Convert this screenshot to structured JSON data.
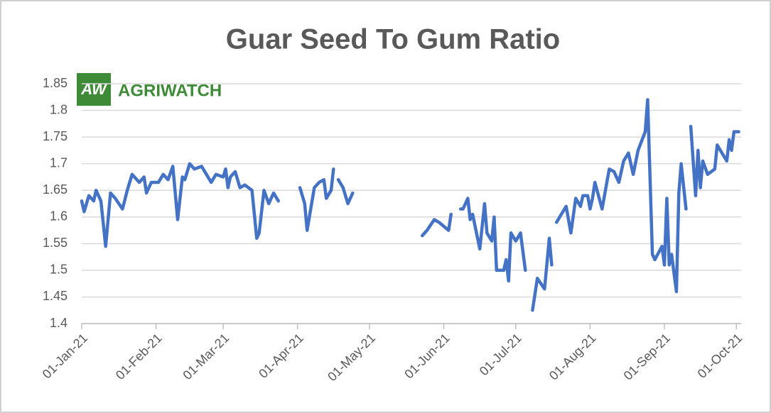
{
  "chart_data": {
    "type": "line",
    "title": "Guar Seed To Gum Ratio",
    "logo": {
      "badge": "AW",
      "text": "AGRIWATCH"
    },
    "x": [
      "2021-01-01",
      "2021-01-02",
      "2021-01-04",
      "2021-01-06",
      "2021-01-07",
      "2021-01-09",
      "2021-01-11",
      "2021-01-13",
      "2021-01-15",
      "2021-01-18",
      "2021-01-20",
      "2021-01-22",
      "2021-01-25",
      "2021-01-27",
      "2021-01-28",
      "2021-01-30",
      "2021-02-02",
      "2021-02-04",
      "2021-02-06",
      "2021-02-08",
      "2021-02-10",
      "2021-02-12",
      "2021-02-13",
      "2021-02-15",
      "2021-02-17",
      "2021-02-20",
      "2021-02-22",
      "2021-02-24",
      "2021-02-26",
      "2021-03-01",
      "2021-03-02",
      "2021-03-03",
      "2021-03-04",
      "2021-03-06",
      "2021-03-08",
      "2021-03-10",
      "2021-03-13",
      "2021-03-15",
      "2021-03-16",
      "2021-03-18",
      "2021-03-20",
      "2021-03-22",
      "2021-03-24",
      "2021-03-28",
      "2021-04-02",
      "2021-04-04",
      "2021-04-05",
      "2021-04-08",
      "2021-04-10",
      "2021-04-12",
      "2021-04-13",
      "2021-04-15",
      "2021-04-16",
      "2021-04-17",
      "2021-04-18",
      "2021-04-20",
      "2021-04-22",
      "2021-04-24",
      "2021-05-08",
      "2021-05-23",
      "2021-05-25",
      "2021-05-28",
      "2021-05-30",
      "2021-06-03",
      "2021-06-04",
      "2021-06-06",
      "2021-06-08",
      "2021-06-09",
      "2021-06-11",
      "2021-06-12",
      "2021-06-13",
      "2021-06-16",
      "2021-06-18",
      "2021-06-19",
      "2021-06-21",
      "2021-06-22",
      "2021-06-23",
      "2021-06-26",
      "2021-06-27",
      "2021-06-28",
      "2021-06-29",
      "2021-07-01",
      "2021-07-03",
      "2021-07-05",
      "2021-07-06",
      "2021-07-08",
      "2021-07-10",
      "2021-07-13",
      "2021-07-15",
      "2021-07-16",
      "2021-07-17",
      "2021-07-18",
      "2021-07-20",
      "2021-07-22",
      "2021-07-24",
      "2021-07-26",
      "2021-07-28",
      "2021-07-29",
      "2021-07-31",
      "2021-08-01",
      "2021-08-02",
      "2021-08-03",
      "2021-08-06",
      "2021-08-08",
      "2021-08-09",
      "2021-08-11",
      "2021-08-13",
      "2021-08-15",
      "2021-08-17",
      "2021-08-19",
      "2021-08-21",
      "2021-08-24",
      "2021-08-25",
      "2021-08-27",
      "2021-08-28",
      "2021-08-31",
      "2021-09-01",
      "2021-09-02",
      "2021-09-03",
      "2021-09-04",
      "2021-09-06",
      "2021-09-07",
      "2021-09-08",
      "2021-09-10",
      "2021-09-11",
      "2021-09-12",
      "2021-09-14",
      "2021-09-15",
      "2021-09-16",
      "2021-09-17",
      "2021-09-19",
      "2021-09-22",
      "2021-09-23",
      "2021-09-25",
      "2021-09-27",
      "2021-09-28",
      "2021-09-29",
      "2021-09-30",
      "2021-10-02"
    ],
    "values": [
      1.63,
      1.61,
      1.64,
      1.63,
      1.65,
      1.63,
      1.545,
      1.645,
      1.635,
      1.615,
      1.65,
      1.68,
      1.665,
      1.675,
      1.645,
      1.665,
      1.665,
      1.68,
      1.67,
      1.695,
      1.595,
      1.675,
      1.67,
      1.7,
      1.69,
      1.695,
      1.68,
      1.665,
      1.68,
      1.675,
      1.69,
      1.655,
      1.675,
      1.685,
      1.655,
      1.66,
      1.65,
      1.56,
      1.57,
      1.65,
      1.625,
      1.645,
      1.63,
      null,
      1.655,
      1.625,
      1.575,
      1.655,
      1.665,
      1.67,
      1.635,
      1.65,
      1.69,
      null,
      1.67,
      1.655,
      1.625,
      1.645,
      null,
      1.565,
      1.575,
      1.595,
      1.59,
      1.575,
      1.605,
      null,
      1.615,
      1.615,
      1.635,
      1.595,
      1.605,
      1.54,
      1.625,
      1.57,
      1.555,
      1.6,
      1.5,
      1.5,
      1.52,
      1.48,
      1.57,
      1.555,
      1.57,
      1.5,
      null,
      1.425,
      1.485,
      1.465,
      1.56,
      1.51,
      null,
      1.59,
      1.605,
      1.62,
      1.57,
      1.635,
      1.62,
      1.64,
      1.64,
      1.615,
      1.635,
      1.665,
      1.615,
      1.665,
      1.69,
      1.685,
      1.665,
      1.705,
      1.72,
      1.68,
      1.725,
      1.76,
      1.82,
      1.53,
      1.52,
      1.545,
      1.51,
      1.635,
      1.51,
      1.53,
      1.46,
      1.645,
      1.7,
      1.615,
      null,
      1.77,
      1.64,
      1.725,
      1.655,
      1.705,
      1.68,
      1.69,
      1.735,
      1.72,
      1.705,
      1.745,
      1.725,
      1.76,
      1.76
    ],
    "color": "#4472c4",
    "xlim": [
      "2021-01-01",
      "2021-10-03"
    ],
    "xticks": [
      {
        "value": "2021-01-01",
        "label": "01-Jan-21"
      },
      {
        "value": "2021-02-01",
        "label": "01-Feb-21"
      },
      {
        "value": "2021-03-01",
        "label": "01-Mar-21"
      },
      {
        "value": "2021-04-01",
        "label": "01-Apr-21"
      },
      {
        "value": "2021-05-01",
        "label": "01-May-21"
      },
      {
        "value": "2021-06-01",
        "label": "01-Jun-21"
      },
      {
        "value": "2021-07-01",
        "label": "01-Jul-21"
      },
      {
        "value": "2021-08-01",
        "label": "01-Aug-21"
      },
      {
        "value": "2021-09-01",
        "label": "01-Sep-21"
      },
      {
        "value": "2021-10-01",
        "label": "01-Oct-21"
      }
    ],
    "ylim": [
      1.4,
      1.85
    ],
    "yticks": [
      1.4,
      1.45,
      1.5,
      1.55,
      1.6,
      1.65,
      1.7,
      1.75,
      1.8,
      1.85
    ],
    "grid": true
  }
}
